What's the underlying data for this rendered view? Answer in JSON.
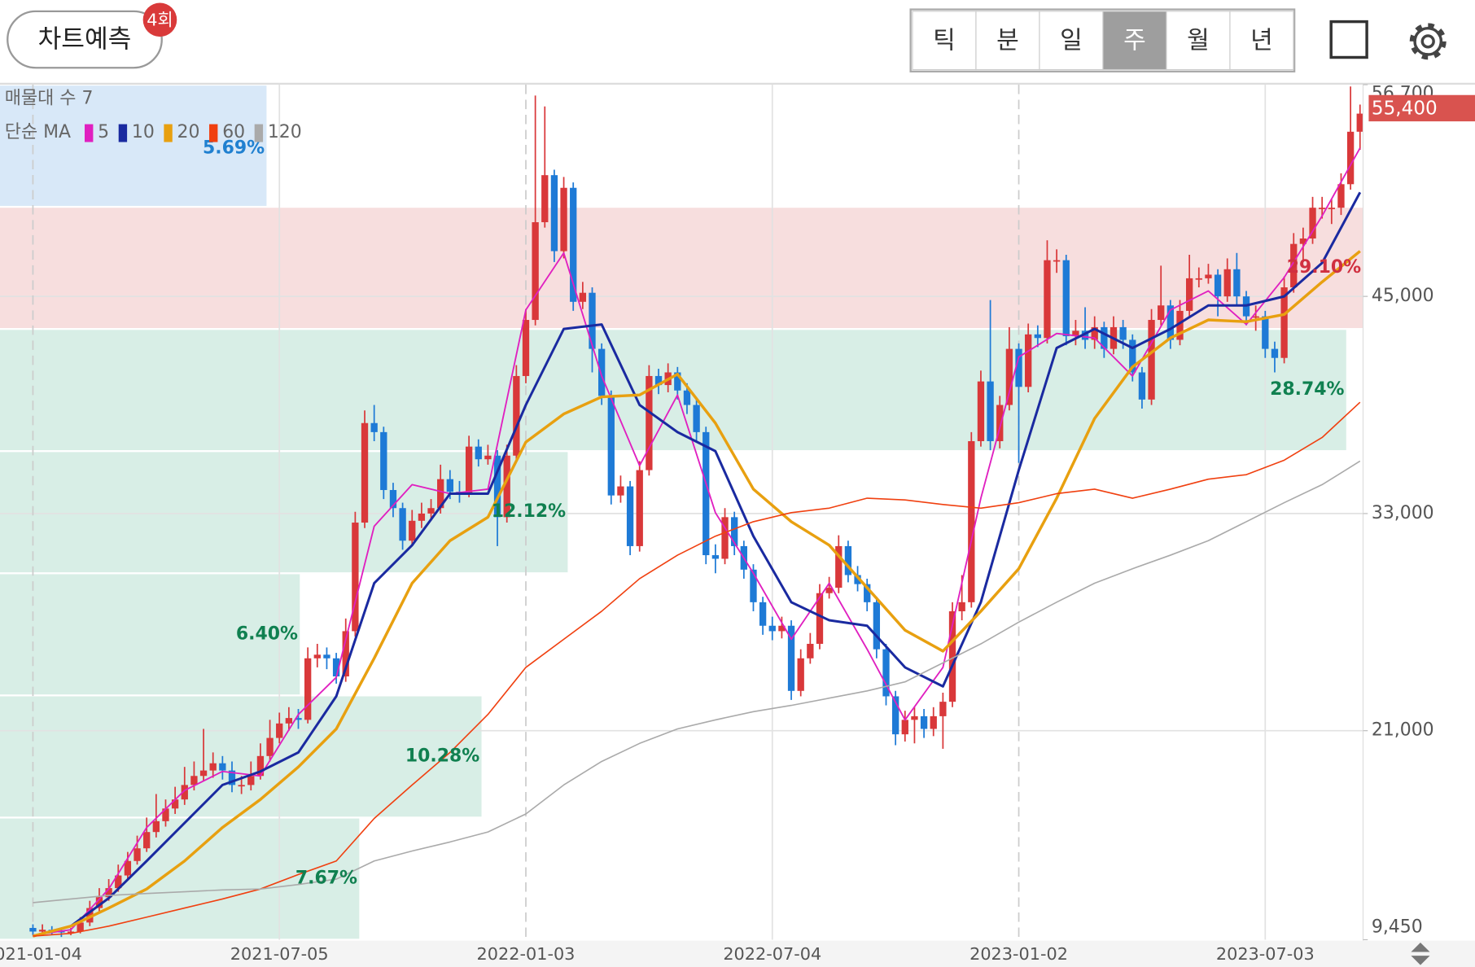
{
  "header": {
    "button": "차트예측",
    "badge": "4회",
    "periods": [
      "틱",
      "분",
      "일",
      "주",
      "월",
      "년"
    ],
    "selected": "주"
  },
  "chart_data": {
    "type": "candlestick",
    "profile_title": "매물대 수 7",
    "legend_title": "단순 MA",
    "up_color": "#d9383a",
    "down_color": "#1e7ad6",
    "ylim": [
      9450,
      56700
    ],
    "yticks": [
      {
        "value": 9450,
        "label": "9,450"
      },
      {
        "value": 21000,
        "label": "21,000"
      },
      {
        "value": 33000,
        "label": "33,000"
      },
      {
        "value": 45000,
        "label": "45,000"
      },
      {
        "value": 56700,
        "label": "56,700"
      }
    ],
    "xticks": [
      "2021-01-04",
      "2021-07-05",
      "2022-01-03",
      "2022-07-04",
      "2023-01-02",
      "2023-07-03"
    ],
    "grid": true,
    "price_tag": {
      "value": 55400,
      "label": "55,400",
      "color": "#d9534f"
    },
    "profile": {
      "bins": [
        9450,
        16200,
        22950,
        29700,
        36450,
        43200,
        49950,
        56700
      ],
      "percents": [
        7.67,
        10.28,
        6.4,
        12.12,
        28.74,
        29.1,
        5.69
      ],
      "value_labels": [
        "7.67%",
        "10.28%",
        "6.40%",
        "12.12%",
        "28.74%",
        "29.10%",
        "5.69%"
      ],
      "colors": [
        "#d8eee6",
        "#d8eee6",
        "#d8eee6",
        "#d8eee6",
        "#d8eee6",
        "#f7dede",
        "#d8e8f8"
      ],
      "label_colors": [
        "#108050",
        "#108050",
        "#108050",
        "#108050",
        "#108050",
        "#d03040",
        "#2080d0"
      ]
    },
    "candles": [
      [
        10100,
        10300,
        9700,
        9900
      ],
      [
        9900,
        10300,
        9700,
        10000
      ],
      [
        10000,
        10200,
        9700,
        9950
      ],
      [
        9950,
        10100,
        9600,
        9850
      ],
      [
        9850,
        10100,
        9700,
        9900
      ],
      [
        9900,
        10700,
        9800,
        10400
      ],
      [
        10400,
        11600,
        10200,
        11200
      ],
      [
        11200,
        12300,
        11000,
        11800
      ],
      [
        11800,
        12800,
        11600,
        12300
      ],
      [
        12300,
        13600,
        12100,
        13000
      ],
      [
        13000,
        14300,
        12800,
        13800
      ],
      [
        13800,
        15200,
        13600,
        14500
      ],
      [
        14500,
        16200,
        14300,
        15400
      ],
      [
        15400,
        17500,
        15100,
        16000
      ],
      [
        16000,
        17200,
        15700,
        16700
      ],
      [
        16700,
        17900,
        16400,
        17200
      ],
      [
        17200,
        19000,
        16900,
        18000
      ],
      [
        18000,
        19300,
        17700,
        18500
      ],
      [
        18500,
        21100,
        18200,
        18800
      ],
      [
        18800,
        19800,
        18400,
        19200
      ],
      [
        19200,
        19600,
        18300,
        18800
      ],
      [
        18800,
        19300,
        17600,
        18000
      ],
      [
        18000,
        18500,
        17500,
        18000
      ],
      [
        18000,
        19300,
        17700,
        18500
      ],
      [
        18500,
        20300,
        18300,
        19600
      ],
      [
        19600,
        21600,
        19300,
        20600
      ],
      [
        20600,
        22000,
        20300,
        21400
      ],
      [
        21400,
        22300,
        21000,
        21700
      ],
      [
        21700,
        22200,
        21100,
        21600
      ],
      [
        21600,
        25600,
        21400,
        25000
      ],
      [
        25000,
        25800,
        24500,
        25200
      ],
      [
        25200,
        25600,
        24400,
        25000
      ],
      [
        25000,
        25300,
        23600,
        24000
      ],
      [
        24000,
        27200,
        23700,
        26500
      ],
      [
        26500,
        33100,
        26200,
        32500
      ],
      [
        32500,
        38700,
        32200,
        38000
      ],
      [
        38000,
        39000,
        37000,
        37500
      ],
      [
        37500,
        37800,
        33800,
        34300
      ],
      [
        34300,
        34700,
        32800,
        33300
      ],
      [
        33300,
        33600,
        31000,
        31500
      ],
      [
        31500,
        33200,
        31200,
        32600
      ],
      [
        32600,
        33600,
        32200,
        33000
      ],
      [
        33000,
        33800,
        32600,
        33300
      ],
      [
        33300,
        35700,
        33000,
        34900
      ],
      [
        34900,
        35400,
        33800,
        34200
      ],
      [
        34200,
        34800,
        33600,
        34100
      ],
      [
        34100,
        37300,
        33900,
        36700
      ],
      [
        36700,
        37100,
        35600,
        36000
      ],
      [
        36000,
        36800,
        35700,
        36200
      ],
      [
        36200,
        36500,
        31200,
        32800
      ],
      [
        32800,
        36800,
        32500,
        36200
      ],
      [
        36200,
        41200,
        35900,
        40600
      ],
      [
        40600,
        44300,
        40200,
        43700
      ],
      [
        43700,
        56100,
        43400,
        49100
      ],
      [
        49100,
        55500,
        48800,
        51700
      ],
      [
        51700,
        52000,
        46900,
        47500
      ],
      [
        47500,
        51600,
        47100,
        51000
      ],
      [
        51000,
        51300,
        44200,
        44700
      ],
      [
        44700,
        45800,
        44300,
        45200
      ],
      [
        45200,
        45500,
        40800,
        42100
      ],
      [
        42100,
        42400,
        39000,
        39500
      ],
      [
        39500,
        39800,
        33500,
        34000
      ],
      [
        34000,
        35100,
        33600,
        34500
      ],
      [
        34500,
        34800,
        30700,
        31200
      ],
      [
        31200,
        35900,
        30900,
        35400
      ],
      [
        35400,
        41200,
        35100,
        40600
      ],
      [
        40600,
        41000,
        39600,
        40100
      ],
      [
        40100,
        41300,
        39700,
        40800
      ],
      [
        40800,
        41100,
        39300,
        39800
      ],
      [
        39800,
        40200,
        38500,
        39000
      ],
      [
        39000,
        39300,
        37000,
        37500
      ],
      [
        37500,
        37800,
        30200,
        30700
      ],
      [
        30700,
        31300,
        29700,
        30500
      ],
      [
        30500,
        33300,
        30200,
        32800
      ],
      [
        32800,
        33100,
        30700,
        31200
      ],
      [
        31200,
        31500,
        29400,
        29900
      ],
      [
        29900,
        30200,
        27600,
        28100
      ],
      [
        28100,
        28400,
        26300,
        26800
      ],
      [
        26800,
        27300,
        26000,
        26500
      ],
      [
        26500,
        27300,
        26100,
        26800
      ],
      [
        26800,
        27100,
        22700,
        23200
      ],
      [
        23200,
        25500,
        22900,
        25000
      ],
      [
        25000,
        26400,
        24700,
        25800
      ],
      [
        25800,
        29100,
        25500,
        28600
      ],
      [
        28600,
        29500,
        28300,
        28900
      ],
      [
        28900,
        31800,
        28600,
        31200
      ],
      [
        31200,
        31500,
        29200,
        29600
      ],
      [
        29600,
        30100,
        28700,
        29100
      ],
      [
        29100,
        29400,
        27600,
        28100
      ],
      [
        28100,
        28400,
        25000,
        25500
      ],
      [
        25500,
        25800,
        22400,
        22900
      ],
      [
        22900,
        23200,
        20200,
        20800
      ],
      [
        20800,
        22100,
        20400,
        21600
      ],
      [
        21600,
        22300,
        20300,
        21800
      ],
      [
        21800,
        22200,
        20600,
        21100
      ],
      [
        21100,
        22300,
        20700,
        21800
      ],
      [
        21800,
        23100,
        20000,
        22600
      ],
      [
        22600,
        28100,
        22300,
        27600
      ],
      [
        27600,
        29600,
        27100,
        28100
      ],
      [
        28100,
        37500,
        27800,
        37000
      ],
      [
        37000,
        40900,
        36700,
        40300
      ],
      [
        40300,
        44800,
        36500,
        37000
      ],
      [
        37000,
        39500,
        36600,
        39000
      ],
      [
        39000,
        43300,
        38700,
        42100
      ],
      [
        42100,
        42400,
        35800,
        40000
      ],
      [
        40000,
        43500,
        39700,
        42900
      ],
      [
        42900,
        43400,
        42200,
        42700
      ],
      [
        42700,
        48100,
        42400,
        47000
      ],
      [
        47000,
        47600,
        46300,
        47000
      ],
      [
        47000,
        47300,
        42300,
        42800
      ],
      [
        42800,
        43700,
        42300,
        43100
      ],
      [
        43100,
        44400,
        42100,
        42600
      ],
      [
        42600,
        43900,
        42100,
        43300
      ],
      [
        43300,
        43600,
        41600,
        42100
      ],
      [
        42100,
        43900,
        41800,
        43300
      ],
      [
        43300,
        43700,
        42100,
        42600
      ],
      [
        42600,
        42900,
        40300,
        40800
      ],
      [
        40800,
        41100,
        38800,
        39300
      ],
      [
        39300,
        44300,
        39000,
        43700
      ],
      [
        43700,
        46700,
        43400,
        44500
      ],
      [
        44500,
        44800,
        42100,
        42600
      ],
      [
        42600,
        44800,
        42300,
        44200
      ],
      [
        44200,
        47300,
        43900,
        46000
      ],
      [
        46000,
        46600,
        45500,
        46000
      ],
      [
        46000,
        46800,
        45700,
        46200
      ],
      [
        46200,
        46500,
        43900,
        45000
      ],
      [
        45000,
        47100,
        44700,
        46500
      ],
      [
        46500,
        47400,
        44500,
        45000
      ],
      [
        45000,
        45300,
        43400,
        43900
      ],
      [
        43900,
        44500,
        43100,
        43900
      ],
      [
        43900,
        44200,
        41600,
        42100
      ],
      [
        42100,
        42500,
        40800,
        41600
      ],
      [
        41600,
        46100,
        41300,
        45500
      ],
      [
        45500,
        48500,
        45200,
        47900
      ],
      [
        47900,
        48800,
        46900,
        48200
      ],
      [
        48200,
        50500,
        47900,
        49900
      ],
      [
        49900,
        50500,
        49300,
        49900
      ],
      [
        49900,
        50400,
        49000,
        49900
      ],
      [
        49900,
        51800,
        49500,
        51200
      ],
      [
        51200,
        56600,
        50900,
        54100
      ],
      [
        54100,
        55600,
        53100,
        55100
      ],
      [
        55100,
        55900,
        54900,
        55400
      ]
    ],
    "x": [
      "2021-01-04",
      "2021-02-01",
      "2021-03-01",
      "2021-03-29",
      "2021-04-26",
      "2021-05-24",
      "2021-06-21",
      "2021-07-19",
      "2021-08-16",
      "2021-09-13",
      "2021-10-11",
      "2021-11-08",
      "2021-12-06",
      "2022-01-03",
      "2022-01-31",
      "2022-02-28",
      "2022-03-28",
      "2022-04-25",
      "2022-05-23",
      "2022-06-20",
      "2022-07-18",
      "2022-08-15",
      "2022-09-12",
      "2022-10-10",
      "2022-11-07",
      "2022-12-05",
      "2023-01-02",
      "2023-01-30",
      "2023-02-27",
      "2023-03-27",
      "2023-04-24",
      "2023-05-22",
      "2023-06-19",
      "2023-07-17",
      "2023-08-14",
      "2023-09-11"
    ],
    "series": [
      {
        "name": "5",
        "color": "#e020c0",
        "width": 1.6,
        "values": [
          9700,
          10000,
          12250,
          15650,
          17700,
          18750,
          18500,
          21900,
          23950,
          32300,
          34600,
          34100,
          34350,
          44250,
          47400,
          40600,
          35650,
          39550,
          33050,
          29700,
          26050,
          29150,
          25500,
          21600,
          24500,
          33850,
          41650,
          42950,
          42700,
          40600,
          44250,
          45300,
          43450,
          46050,
          49450,
          53200
        ]
      },
      {
        "name": "10",
        "color": "#1a2aa0",
        "width": 2.6,
        "values": [
          9650,
          10200,
          11750,
          13800,
          15900,
          18000,
          18750,
          19800,
          22900,
          29150,
          31250,
          34100,
          34100,
          39000,
          43200,
          43450,
          39000,
          37500,
          36450,
          31750,
          28100,
          27100,
          26800,
          24500,
          23450,
          28100,
          35400,
          42150,
          43200,
          42150,
          43200,
          44500,
          44500,
          45000,
          46850,
          50750
        ]
      },
      {
        "name": "20",
        "color": "#e8a010",
        "width": 3,
        "values": [
          9650,
          10200,
          11200,
          12250,
          13800,
          15650,
          17200,
          19000,
          21100,
          25000,
          29150,
          31500,
          32800,
          36950,
          38500,
          39450,
          39550,
          40700,
          38000,
          34350,
          32550,
          31250,
          28900,
          26550,
          25400,
          27600,
          29950,
          33850,
          38250,
          41100,
          42700,
          43700,
          43600,
          44000,
          45800,
          47500
        ]
      },
      {
        "name": "60",
        "color": "#f04010",
        "width": 1.4,
        "values": [
          9650,
          9800,
          10200,
          10700,
          11200,
          11700,
          12250,
          13050,
          13800,
          16150,
          18000,
          19800,
          21900,
          24500,
          26050,
          27600,
          29400,
          30700,
          31750,
          32550,
          33050,
          33300,
          33850,
          33750,
          33500,
          33300,
          33600,
          34100,
          34350,
          33850,
          34350,
          34900,
          35150,
          35950,
          37200,
          39150
        ]
      },
      {
        "name": "120",
        "color": "#aaaaaa",
        "width": 1.4,
        "values": [
          11500,
          11700,
          11900,
          12000,
          12100,
          12200,
          12250,
          12500,
          12800,
          13800,
          14350,
          14850,
          15400,
          16400,
          18000,
          19300,
          20300,
          21100,
          21600,
          22050,
          22400,
          22800,
          23200,
          23700,
          24750,
          25800,
          27000,
          28100,
          29150,
          29950,
          30700,
          31500,
          32550,
          33600,
          34600,
          35900
        ]
      }
    ]
  }
}
